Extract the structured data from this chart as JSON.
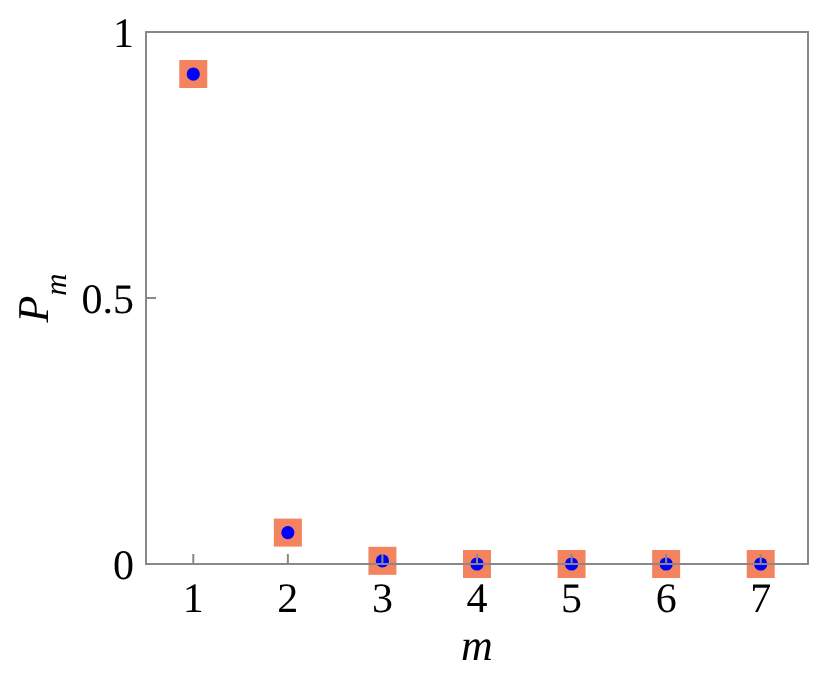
{
  "chart_data": {
    "type": "scatter",
    "xlabel": "m",
    "ylabel": "P$_{m}$",
    "x": [
      1,
      2,
      3,
      4,
      5,
      6,
      7
    ],
    "series": [
      {
        "color": "#f4845f",
        "marker": "square",
        "values": [
          0.921,
          0.059,
          0.006,
          0,
          0,
          0,
          0
        ]
      },
      {
        "color": "#0000ff",
        "marker": "circle",
        "values": [
          0.921,
          0.059,
          0.006,
          0,
          0,
          0,
          0
        ]
      }
    ],
    "xlim": [
      0.5,
      7.5
    ],
    "xticks": [
      1,
      2,
      3,
      4,
      5,
      6,
      7
    ],
    "ylim": [
      0,
      1
    ],
    "yticks": [
      0,
      0.5,
      1
    ],
    "grid": false
  }
}
